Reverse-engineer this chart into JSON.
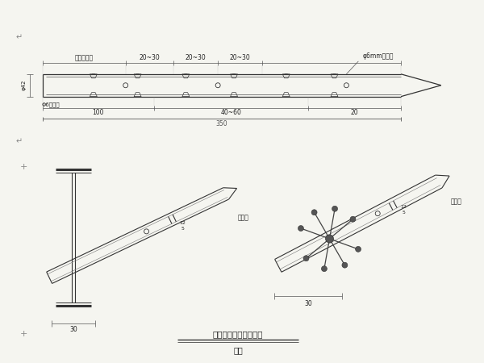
{
  "bg_color": "#f5f5f0",
  "line_color": "#333333",
  "text_color": "#222222",
  "title": "小号管架设位置示意图",
  "subtitle": "示意",
  "label_stop": "预留止浆段",
  "label_2030a": "20~30",
  "label_2030b": "20~30",
  "label_2030c": "20~30",
  "label_inject": "φ6mm注浆孔",
  "label_stiffener": "Φ6加劈箋",
  "label_phi42": "φ42",
  "dim_100": "100",
  "dim_4060": "40~60",
  "dim_20": "20",
  "dim_350": "350",
  "dim_30": "30",
  "label_pipe1": "钉抬箋",
  "label_pipe2": "钉抬箋",
  "para_mark": "↵",
  "plus_mark": "+",
  "dim_12": "12",
  "dim_5": "5"
}
